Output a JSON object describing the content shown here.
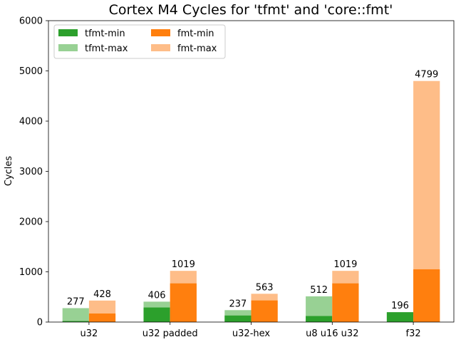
{
  "chart_data": {
    "type": "bar",
    "title": "Cortex M4 Cycles for 'tfmt' and 'core::fmt'",
    "xlabel": "",
    "ylabel": "Cycles",
    "ylim": [
      0,
      6000
    ],
    "yticks": [
      0,
      1000,
      2000,
      3000,
      4000,
      5000,
      6000
    ],
    "categories": [
      "u32",
      "u32 padded",
      "u32-hex",
      "u8 u16 u32",
      "f32"
    ],
    "series": [
      {
        "name": "tfmt-min",
        "group": "tfmt",
        "layer": "min",
        "color": "#2ca02c",
        "values": [
          20,
          290,
          130,
          120,
          196
        ]
      },
      {
        "name": "tfmt-max",
        "group": "tfmt",
        "layer": "max",
        "color": "#98d194",
        "values": [
          277,
          406,
          237,
          512,
          196
        ]
      },
      {
        "name": "fmt-min",
        "group": "fmt",
        "layer": "min",
        "color": "#ff7f0e",
        "values": [
          170,
          770,
          430,
          770,
          1050
        ]
      },
      {
        "name": "fmt-max",
        "group": "fmt",
        "layer": "max",
        "color": "#febd88",
        "values": [
          428,
          1019,
          563,
          1019,
          4799
        ]
      }
    ],
    "data_labels": {
      "tfmt": [
        "277",
        "406",
        "237",
        "512",
        "196"
      ],
      "fmt": [
        "428",
        "1019",
        "563",
        "1019",
        "4799"
      ]
    },
    "legend": {
      "placement": "top-left",
      "entries": [
        "tfmt-min",
        "tfmt-max",
        "fmt-min",
        "fmt-max"
      ]
    },
    "grid": false
  }
}
